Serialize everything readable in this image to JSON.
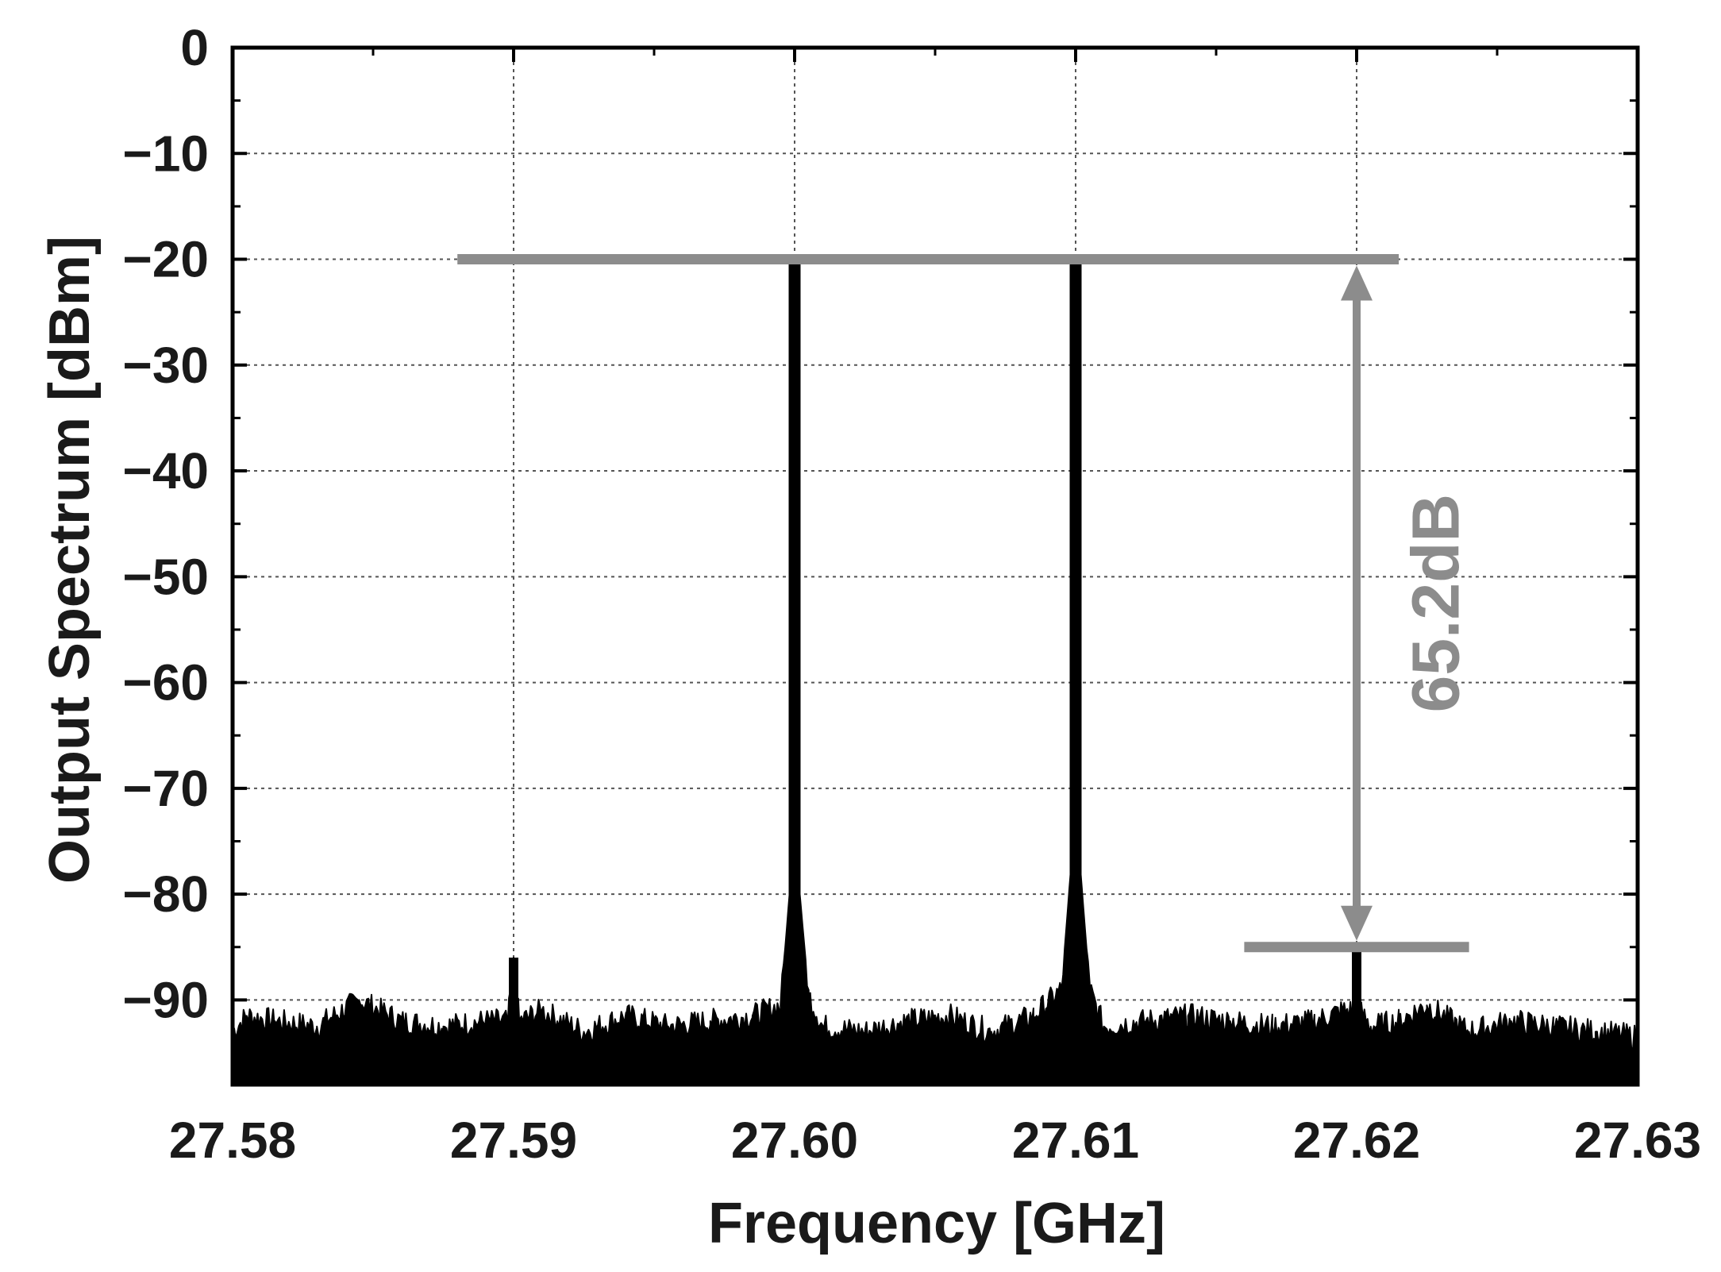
{
  "chart_data": {
    "type": "line",
    "title": "",
    "xlabel": "Frequency [GHz]",
    "ylabel": "Output Spectrum [dBm]",
    "xlim": [
      27.58,
      27.63
    ],
    "ylim": [
      -98,
      0
    ],
    "x_ticks": [
      27.58,
      27.59,
      27.6,
      27.61,
      27.62,
      27.63
    ],
    "x_tick_labels": [
      "27.58",
      "27.59",
      "27.60",
      "27.61",
      "27.62",
      "27.63"
    ],
    "y_ticks": [
      0,
      -10,
      -20,
      -30,
      -40,
      -50,
      -60,
      -70,
      -80,
      -90
    ],
    "y_tick_labels": [
      "0",
      "−10",
      "−20",
      "−30",
      "−40",
      "−50",
      "−60",
      "−70",
      "−80",
      "−90"
    ],
    "grid": true,
    "noise_floor_dbm": -92,
    "peaks": [
      {
        "x": 27.59,
        "y": -86
      },
      {
        "x": 27.6,
        "y": -20
      },
      {
        "x": 27.61,
        "y": -20
      },
      {
        "x": 27.62,
        "y": -85
      }
    ],
    "series": [
      {
        "color": "#000000",
        "x": [
          27.58,
          27.5805,
          27.5815,
          27.583,
          27.5845,
          27.586,
          27.5875,
          27.589,
          27.5898,
          27.59,
          27.5902,
          27.591,
          27.5925,
          27.594,
          27.5955,
          27.597,
          27.5985,
          27.5995,
          27.59985,
          27.6,
          27.60015,
          27.6005,
          27.601,
          27.6025,
          27.604,
          27.6055,
          27.607,
          27.6085,
          27.6095,
          27.60985,
          27.61,
          27.61015,
          27.6105,
          27.611,
          27.6125,
          27.614,
          27.6155,
          27.617,
          27.6185,
          27.6195,
          27.6199,
          27.62,
          27.6201,
          27.6205,
          27.6215,
          27.6225,
          27.624,
          27.6255,
          27.627,
          27.6285,
          27.63
        ],
        "y": [
          -93,
          -91.5,
          -92,
          -92.5,
          -90,
          -92,
          -92.5,
          -92,
          -92,
          -86,
          -92,
          -91,
          -93,
          -91.5,
          -92.5,
          -92,
          -91.5,
          -90.5,
          -79,
          -20,
          -79,
          -89.5,
          -92.5,
          -93,
          -92,
          -91.5,
          -93,
          -91.5,
          -89,
          -77,
          -20,
          -77,
          -89,
          -92.5,
          -92,
          -91.5,
          -92,
          -92.5,
          -92,
          -91,
          -91,
          -85,
          -91,
          -92.5,
          -92,
          -90.5,
          -93,
          -92,
          -92.5,
          -93,
          -93.5
        ]
      }
    ],
    "annotations": [
      {
        "type": "reference-line",
        "y": -20,
        "x_from": 27.588,
        "x_to": 27.6215,
        "color": "#8c8c8c"
      },
      {
        "type": "reference-line",
        "y": -85,
        "x_from": 27.616,
        "x_to": 27.624,
        "color": "#8c8c8c"
      },
      {
        "type": "double-arrow",
        "x": 27.62,
        "y_from": -20,
        "y_to": -85,
        "color": "#8c8c8c"
      },
      {
        "type": "text",
        "text": "65.2dB",
        "x": 27.623,
        "y": -52.5,
        "rotation": -90,
        "color": "#8c8c8c"
      }
    ]
  }
}
